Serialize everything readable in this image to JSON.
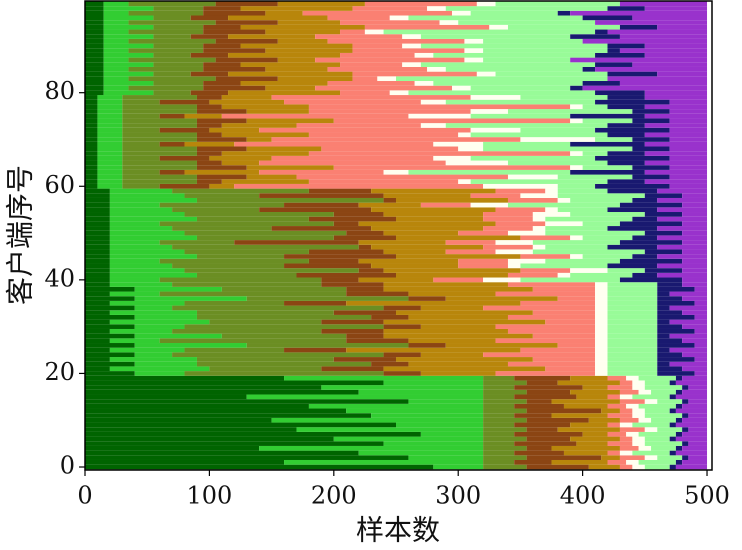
{
  "chart_data": {
    "type": "bar",
    "orientation": "horizontal",
    "stacked": true,
    "xlabel": "样本数",
    "ylabel": "客户端序号",
    "xlim": [
      0,
      504
    ],
    "xticks": [
      0,
      100,
      200,
      300,
      400,
      500
    ],
    "ylim": [
      -0.64,
      99.6
    ],
    "yticks": [
      0,
      20,
      40,
      60,
      80
    ],
    "y": [
      0,
      1,
      2,
      3,
      4,
      5,
      6,
      7,
      8,
      9,
      10,
      11,
      12,
      13,
      14,
      15,
      16,
      17,
      18,
      19,
      20,
      21,
      22,
      23,
      24,
      25,
      26,
      27,
      28,
      29,
      30,
      31,
      32,
      33,
      34,
      35,
      36,
      37,
      38,
      39,
      40,
      41,
      42,
      43,
      44,
      45,
      46,
      47,
      48,
      49,
      50,
      51,
      52,
      53,
      54,
      55,
      56,
      57,
      58,
      59,
      60,
      61,
      62,
      63,
      64,
      65,
      66,
      67,
      68,
      69,
      70,
      71,
      72,
      73,
      74,
      75,
      76,
      77,
      78,
      79,
      80,
      81,
      82,
      83,
      84,
      85,
      86,
      87,
      88,
      89,
      90,
      91,
      92,
      93,
      94,
      95,
      96,
      97,
      98,
      99
    ],
    "series": [
      {
        "color": "#006400",
        "values": [
          280,
          160,
          260,
          220,
          140,
          240,
          200,
          270,
          170,
          250,
          150,
          230,
          210,
          180,
          260,
          130,
          220,
          190,
          240,
          160,
          40,
          20,
          40,
          20,
          40,
          20,
          40,
          20,
          40,
          20,
          40,
          20,
          40,
          20,
          40,
          20,
          40,
          20,
          40,
          20,
          20,
          20,
          20,
          20,
          20,
          20,
          20,
          20,
          20,
          20,
          20,
          20,
          20,
          20,
          20,
          20,
          20,
          20,
          20,
          20,
          10,
          10,
          10,
          10,
          10,
          10,
          10,
          10,
          10,
          10,
          10,
          10,
          10,
          10,
          10,
          10,
          10,
          10,
          10,
          10,
          15,
          15,
          15,
          15,
          15,
          15,
          15,
          15,
          15,
          15,
          15,
          15,
          15,
          15,
          15,
          15,
          15,
          15,
          15,
          15
        ]
      },
      {
        "color": "#32cd32",
        "values": [
          40,
          160,
          60,
          100,
          180,
          80,
          120,
          50,
          150,
          70,
          170,
          90,
          110,
          140,
          60,
          190,
          100,
          130,
          80,
          160,
          40,
          80,
          50,
          70,
          30,
          60,
          90,
          40,
          70,
          50,
          40,
          80,
          50,
          70,
          30,
          60,
          90,
          40,
          70,
          50,
          40,
          70,
          60,
          50,
          40,
          70,
          60,
          50,
          40,
          70,
          60,
          50,
          40,
          70,
          60,
          50,
          40,
          70,
          60,
          50,
          20,
          20,
          20,
          20,
          20,
          20,
          20,
          20,
          20,
          20,
          20,
          20,
          20,
          20,
          20,
          20,
          20,
          20,
          20,
          20,
          40,
          20,
          40,
          20,
          40,
          20,
          40,
          20,
          40,
          20,
          40,
          20,
          40,
          20,
          40,
          20,
          40,
          20,
          40,
          20
        ]
      },
      {
        "color": "#6b8e23",
        "values": [
          35,
          25,
          35,
          25,
          35,
          25,
          35,
          25,
          35,
          25,
          35,
          25,
          35,
          25,
          35,
          25,
          35,
          25,
          35,
          25,
          160,
          90,
          140,
          110,
          170,
          80,
          130,
          150,
          100,
          120,
          160,
          90,
          140,
          110,
          170,
          80,
          130,
          150,
          100,
          120,
          130,
          80,
          140,
          90,
          120,
          70,
          100,
          150,
          60,
          110,
          130,
          80,
          140,
          90,
          120,
          70,
          100,
          150,
          60,
          110,
          30,
          60,
          60,
          30,
          60,
          60,
          30,
          60,
          60,
          30,
          60,
          60,
          30,
          60,
          60,
          30,
          60,
          60,
          30,
          60,
          30,
          60,
          40,
          70,
          30,
          60,
          40,
          70,
          30,
          60,
          40,
          70,
          30,
          60,
          40,
          70,
          30,
          60,
          40,
          70
        ]
      },
      {
        "color": "#8b4513",
        "values": [
          50,
          30,
          60,
          40,
          20,
          50,
          35,
          55,
          25,
          45,
          50,
          30,
          60,
          40,
          20,
          50,
          35,
          55,
          25,
          45,
          30,
          50,
          30,
          50,
          30,
          50,
          30,
          50,
          30,
          50,
          30,
          50,
          30,
          50,
          30,
          50,
          30,
          50,
          30,
          50,
          30,
          80,
          20,
          70,
          40,
          90,
          60,
          10,
          100,
          50,
          30,
          80,
          20,
          70,
          40,
          90,
          60,
          10,
          100,
          50,
          40,
          20,
          40,
          20,
          40,
          20,
          40,
          20,
          40,
          20,
          40,
          20,
          40,
          20,
          40,
          20,
          40,
          20,
          40,
          20,
          30,
          50,
          30,
          50,
          30,
          50,
          30,
          50,
          30,
          50,
          30,
          50,
          30,
          50,
          30,
          50,
          30,
          50,
          30,
          50
        ]
      },
      {
        "color": "#b8860b",
        "values": [
          25,
          45,
          15,
          35,
          55,
          25,
          40,
          20,
          50,
          30,
          25,
          45,
          15,
          35,
          55,
          25,
          40,
          20,
          50,
          30,
          60,
          130,
          80,
          110,
          50,
          140,
          90,
          70,
          120,
          100,
          60,
          130,
          80,
          110,
          50,
          140,
          90,
          70,
          120,
          100,
          60,
          90,
          110,
          70,
          80,
          100,
          50,
          90,
          70,
          100,
          60,
          90,
          110,
          70,
          80,
          100,
          50,
          90,
          70,
          100,
          20,
          70,
          40,
          60,
          70,
          30,
          50,
          70,
          60,
          40,
          20,
          70,
          40,
          60,
          70,
          30,
          50,
          70,
          60,
          40,
          90,
          40,
          70,
          60,
          100,
          50,
          80,
          30,
          90,
          70,
          90,
          40,
          70,
          60,
          100,
          50,
          80,
          30,
          90,
          70
        ]
      },
      {
        "color": "#fa8072",
        "values": [
          10,
          15,
          20,
          10,
          15,
          20,
          10,
          15,
          20,
          10,
          15,
          20,
          10,
          15,
          20,
          10,
          15,
          20,
          10,
          15,
          80,
          40,
          70,
          50,
          90,
          60,
          30,
          80,
          50,
          70,
          80,
          40,
          70,
          50,
          90,
          60,
          30,
          80,
          50,
          70,
          40,
          40,
          40,
          40,
          40,
          40,
          40,
          40,
          40,
          40,
          40,
          40,
          40,
          40,
          40,
          40,
          40,
          40,
          40,
          40,
          200,
          120,
          170,
          100,
          190,
          150,
          130,
          210,
          110,
          160,
          200,
          120,
          170,
          100,
          190,
          150,
          130,
          210,
          110,
          160,
          40,
          110,
          70,
          20,
          100,
          80,
          50,
          120,
          60,
          90,
          40,
          110,
          70,
          20,
          100,
          80,
          50,
          120,
          60,
          90
        ]
      },
      {
        "color": "#fffff0",
        "values": [
          10,
          10,
          10,
          10,
          10,
          10,
          10,
          10,
          10,
          10,
          10,
          10,
          10,
          10,
          10,
          10,
          10,
          10,
          10,
          10,
          10,
          10,
          10,
          10,
          10,
          10,
          10,
          10,
          10,
          10,
          10,
          10,
          10,
          10,
          10,
          10,
          10,
          10,
          10,
          10,
          30,
          10,
          30,
          10,
          30,
          10,
          30,
          10,
          30,
          10,
          30,
          10,
          30,
          10,
          30,
          10,
          30,
          10,
          30,
          10,
          60,
          10,
          40,
          20,
          10,
          50,
          30,
          10,
          20,
          40,
          60,
          10,
          40,
          20,
          10,
          50,
          30,
          10,
          20,
          40,
          15,
          15,
          15,
          15,
          15,
          15,
          15,
          15,
          15,
          15,
          15,
          15,
          15,
          15,
          15,
          15,
          15,
          15,
          15,
          15
        ]
      },
      {
        "color": "#98fb98",
        "values": [
          20,
          30,
          20,
          30,
          20,
          30,
          20,
          30,
          20,
          30,
          20,
          30,
          20,
          30,
          20,
          30,
          20,
          30,
          20,
          30,
          40,
          40,
          40,
          40,
          40,
          40,
          40,
          40,
          40,
          40,
          40,
          40,
          40,
          40,
          40,
          40,
          40,
          40,
          40,
          40,
          80,
          50,
          30,
          70,
          60,
          40,
          90,
          50,
          70,
          40,
          80,
          50,
          30,
          70,
          60,
          40,
          90,
          50,
          70,
          40,
          30,
          110,
          60,
          130,
          40,
          80,
          100,
          20,
          120,
          70,
          30,
          110,
          60,
          130,
          40,
          80,
          100,
          20,
          120,
          70,
          150,
          80,
          120,
          170,
          90,
          110,
          140,
          70,
          130,
          100,
          150,
          80,
          120,
          170,
          90,
          110,
          140,
          70,
          130,
          100
        ]
      },
      {
        "color": "#191970",
        "values": [
          5,
          5,
          5,
          5,
          5,
          5,
          5,
          5,
          5,
          5,
          5,
          5,
          5,
          5,
          5,
          5,
          5,
          5,
          5,
          5,
          30,
          20,
          10,
          30,
          20,
          10,
          30,
          20,
          10,
          30,
          20,
          10,
          30,
          20,
          10,
          30,
          20,
          10,
          30,
          20,
          50,
          20,
          30,
          40,
          50,
          20,
          30,
          40,
          50,
          20,
          30,
          40,
          50,
          20,
          30,
          40,
          50,
          20,
          30,
          40,
          60,
          30,
          30,
          60,
          30,
          30,
          60,
          30,
          30,
          60,
          30,
          30,
          60,
          30,
          30,
          60,
          30,
          30,
          60,
          30,
          40,
          10,
          30,
          0,
          40,
          10,
          30,
          0,
          40,
          10,
          30,
          0,
          40,
          10,
          30,
          0,
          40,
          10,
          30,
          0
        ]
      },
      {
        "color": "#9932cc",
        "values": [
          25,
          20,
          15,
          25,
          20,
          15,
          25,
          20,
          15,
          25,
          20,
          15,
          25,
          20,
          15,
          25,
          20,
          15,
          25,
          20,
          10,
          20,
          30,
          10,
          20,
          30,
          10,
          20,
          30,
          10,
          20,
          30,
          10,
          20,
          30,
          10,
          20,
          30,
          10,
          20,
          20,
          40,
          20,
          40,
          20,
          40,
          20,
          40,
          20,
          40,
          20,
          40,
          20,
          40,
          20,
          40,
          20,
          40,
          20,
          40,
          30,
          50,
          30,
          50,
          30,
          50,
          30,
          50,
          30,
          50,
          30,
          50,
          30,
          50,
          30,
          50,
          30,
          50,
          30,
          50,
          50,
          100,
          70,
          80,
          40,
          90,
          60,
          110,
          50,
          70,
          50,
          100,
          70,
          80,
          40,
          90,
          60,
          110,
          50,
          70
        ]
      }
    ]
  }
}
